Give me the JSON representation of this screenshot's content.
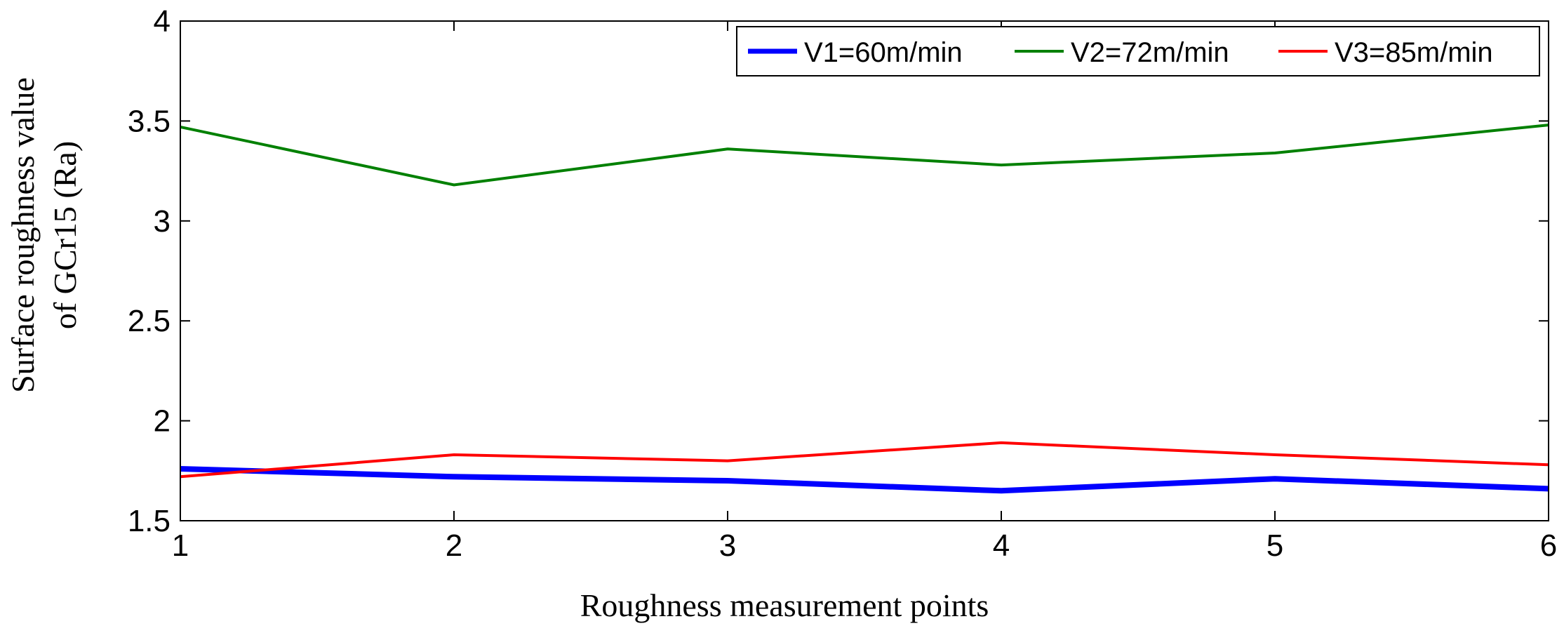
{
  "chart_data": {
    "type": "line",
    "title": "",
    "xlabel": "Roughness measurement points",
    "ylabel_lines": [
      "Surface roughness value",
      "of GCr15 (Ra)"
    ],
    "x": [
      1,
      2,
      3,
      4,
      5,
      6
    ],
    "xlim": [
      1,
      6
    ],
    "ylim": [
      1.5,
      4
    ],
    "xticks": [
      1,
      2,
      3,
      4,
      5,
      6
    ],
    "xtick_labels": [
      "1",
      "2",
      "3",
      "4",
      "5",
      "6"
    ],
    "yticks": [
      1.5,
      2,
      2.5,
      3,
      3.5,
      4
    ],
    "ytick_labels": [
      "1.5",
      "2",
      "2.5",
      "3",
      "3.5",
      "4"
    ],
    "grid": false,
    "legend_position": "top-right",
    "series": [
      {
        "name": "V1=60m/min",
        "color": "#0000ff",
        "values": [
          1.76,
          1.72,
          1.7,
          1.65,
          1.71,
          1.66
        ]
      },
      {
        "name": "V2=72m/min",
        "color": "#008000",
        "values": [
          3.47,
          3.18,
          3.36,
          3.28,
          3.34,
          3.48
        ]
      },
      {
        "name": "V3=85m/min",
        "color": "#ff0000",
        "values": [
          1.72,
          1.83,
          1.8,
          1.89,
          1.83,
          1.78
        ]
      }
    ]
  }
}
